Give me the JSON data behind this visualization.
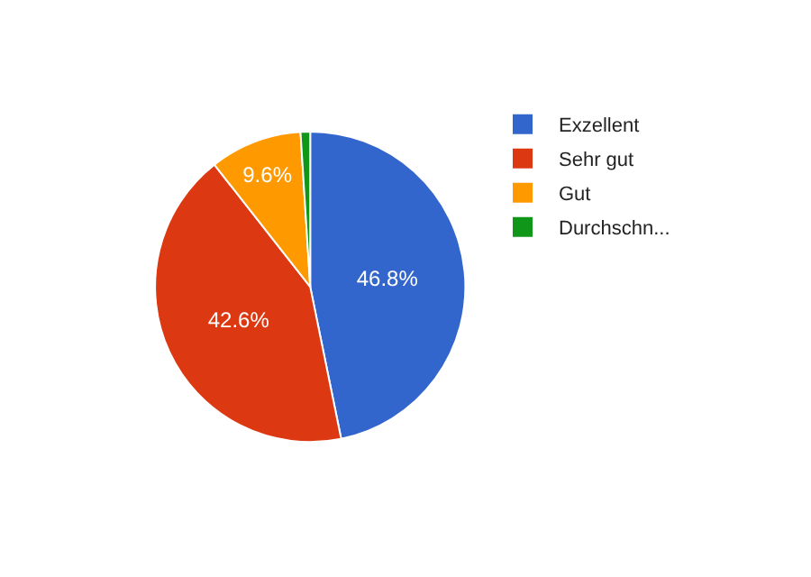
{
  "chart_data": {
    "type": "pie",
    "categories": [
      "Exzellent",
      "Sehr gut",
      "Gut",
      "Durchschn..."
    ],
    "values": [
      46.8,
      42.6,
      9.6,
      1.0
    ],
    "colors": [
      "#3366cc",
      "#dc3912",
      "#ff9900",
      "#109618"
    ],
    "value_labels": [
      "46.8%",
      "42.6%",
      "9.6%",
      null
    ],
    "legend": "top right"
  }
}
